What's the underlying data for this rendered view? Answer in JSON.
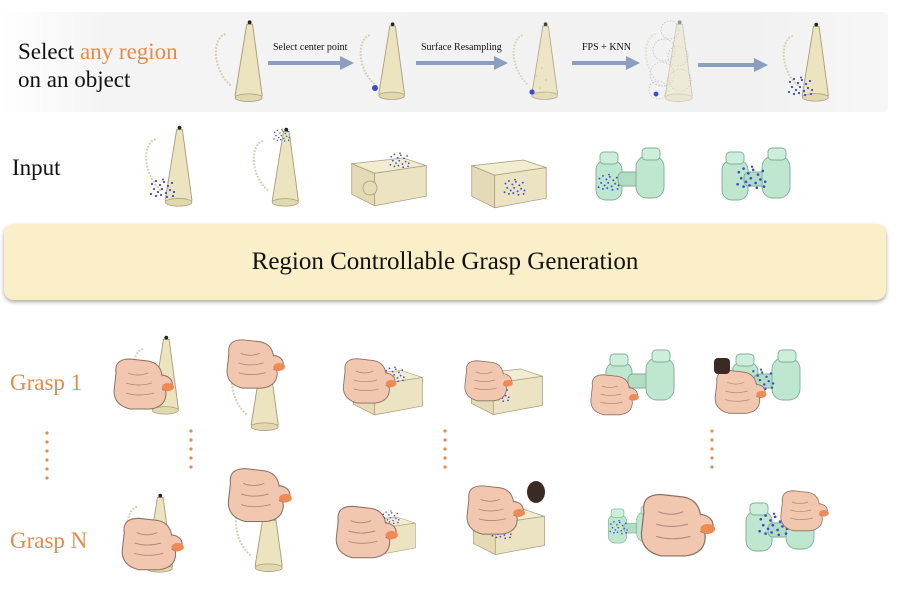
{
  "header": {
    "select_prefix": "Select ",
    "select_accent": "any region",
    "select_line2": "on an object"
  },
  "pipeline": {
    "steps": [
      "Select center point",
      "Surface Resampling",
      "FPS + KNN"
    ]
  },
  "rows": {
    "input_label": "Input",
    "grasp_first_label": "Grasp 1",
    "grasp_last_label": "Grasp N"
  },
  "banner": {
    "title": "Region Controllable Grasp Generation"
  },
  "colors": {
    "accent": "#e58a4a",
    "banner_bg": "#fbefc9",
    "arrow": "#8a9fc0",
    "object_cream": "#ece3bf",
    "object_green": "#bfe6cf",
    "points_blue": "#3b4bd0",
    "skin": "#f1c7b0",
    "fingertip": "#f08a55"
  }
}
